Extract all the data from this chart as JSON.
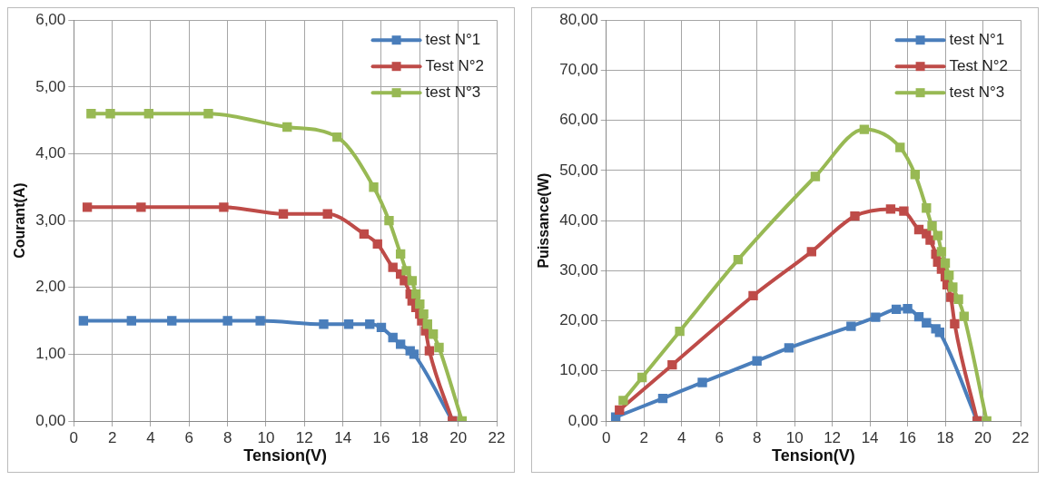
{
  "chart_data": [
    {
      "type": "line",
      "xlabel": "Tension(V)",
      "ylabel": "Courant(A)",
      "xlim": [
        0,
        22
      ],
      "xticks": [
        0,
        2,
        4,
        6,
        8,
        10,
        12,
        14,
        16,
        18,
        20,
        22
      ],
      "ylim": [
        0,
        6
      ],
      "yticks": [
        {
          "value": 0,
          "label": "0,00"
        },
        {
          "value": 1,
          "label": "1,00"
        },
        {
          "value": 2,
          "label": "2,00"
        },
        {
          "value": 3,
          "label": "3,00"
        },
        {
          "value": 4,
          "label": "4,00"
        },
        {
          "value": 5,
          "label": "5,00"
        },
        {
          "value": 6,
          "label": "6,00"
        }
      ],
      "grid": true,
      "legend": "top right",
      "marker": "square",
      "line_style": "solid",
      "series": [
        {
          "name": "test N°1",
          "color": "#4a7ebb",
          "x": [
            0.5,
            3.0,
            5.1,
            8.0,
            9.7,
            13.0,
            14.3,
            15.4,
            16.0,
            16.6,
            17.0,
            17.5,
            17.7,
            19.7
          ],
          "values": [
            1.5,
            1.5,
            1.5,
            1.5,
            1.5,
            1.45,
            1.45,
            1.45,
            1.4,
            1.25,
            1.15,
            1.05,
            1.0,
            0
          ]
        },
        {
          "name": "Test N°2",
          "color": "#be4b48",
          "x": [
            0.7,
            3.5,
            7.8,
            10.9,
            13.2,
            15.1,
            15.8,
            16.6,
            17.0,
            17.2,
            17.5,
            17.6,
            17.8,
            18.0,
            18.1,
            18.3,
            18.5,
            19.7
          ],
          "values": [
            3.2,
            3.2,
            3.2,
            3.1,
            3.1,
            2.8,
            2.65,
            2.3,
            2.2,
            2.1,
            1.9,
            1.8,
            1.7,
            1.6,
            1.5,
            1.35,
            1.05,
            0
          ]
        },
        {
          "name": "test N°3",
          "color": "#98b954",
          "x": [
            0.9,
            1.9,
            3.9,
            7.0,
            11.1,
            13.7,
            15.6,
            16.4,
            17.0,
            17.3,
            17.6,
            17.8,
            18.0,
            18.2,
            18.4,
            18.7,
            19.0,
            20.2
          ],
          "values": [
            4.6,
            4.6,
            4.6,
            4.6,
            4.4,
            4.25,
            3.5,
            3.0,
            2.5,
            2.25,
            2.1,
            1.9,
            1.75,
            1.6,
            1.45,
            1.3,
            1.1,
            0
          ]
        }
      ]
    },
    {
      "type": "line",
      "xlabel": "Tension(V)",
      "ylabel": "Puissance(W)",
      "xlim": [
        0,
        22
      ],
      "xticks": [
        0,
        2,
        4,
        6,
        8,
        10,
        12,
        14,
        16,
        18,
        20,
        22
      ],
      "ylim": [
        0,
        80
      ],
      "yticks": [
        {
          "value": 0,
          "label": "0,00"
        },
        {
          "value": 10,
          "label": "10,00"
        },
        {
          "value": 20,
          "label": "20,00"
        },
        {
          "value": 30,
          "label": "30,00"
        },
        {
          "value": 40,
          "label": "40,00"
        },
        {
          "value": 50,
          "label": "50,00"
        },
        {
          "value": 60,
          "label": "60,00"
        },
        {
          "value": 70,
          "label": "70,00"
        },
        {
          "value": 80,
          "label": "80,00"
        }
      ],
      "grid": true,
      "legend": "top right",
      "marker": "square",
      "line_style": "solid",
      "series": [
        {
          "name": "test N°1",
          "color": "#4a7ebb",
          "x": [
            0.5,
            3.0,
            5.1,
            8.0,
            9.7,
            13.0,
            14.3,
            15.4,
            16.0,
            16.6,
            17.0,
            17.5,
            17.7,
            19.7
          ],
          "values": [
            0.8,
            4.5,
            7.7,
            12.0,
            14.6,
            18.9,
            20.7,
            22.3,
            22.4,
            20.8,
            19.6,
            18.4,
            17.7,
            0
          ]
        },
        {
          "name": "Test N°2",
          "color": "#be4b48",
          "x": [
            0.7,
            3.5,
            7.8,
            10.9,
            13.2,
            15.1,
            15.8,
            16.6,
            17.0,
            17.2,
            17.5,
            17.6,
            17.8,
            18.0,
            18.1,
            18.3,
            18.5,
            19.7
          ],
          "values": [
            2.2,
            11.2,
            25.0,
            33.8,
            40.9,
            42.3,
            41.9,
            38.2,
            37.4,
            36.1,
            33.3,
            31.7,
            30.3,
            28.8,
            27.2,
            24.7,
            19.4,
            0
          ]
        },
        {
          "name": "test N°3",
          "color": "#98b954",
          "x": [
            0.9,
            1.9,
            3.9,
            7.0,
            11.1,
            13.7,
            15.6,
            16.4,
            17.0,
            17.3,
            17.6,
            17.8,
            18.0,
            18.2,
            18.4,
            18.7,
            19.0,
            20.2
          ],
          "values": [
            4.1,
            8.7,
            17.9,
            32.2,
            48.8,
            58.2,
            54.6,
            49.2,
            42.5,
            38.9,
            37.0,
            33.8,
            31.5,
            29.1,
            26.7,
            24.3,
            20.9,
            0
          ]
        }
      ]
    }
  ]
}
